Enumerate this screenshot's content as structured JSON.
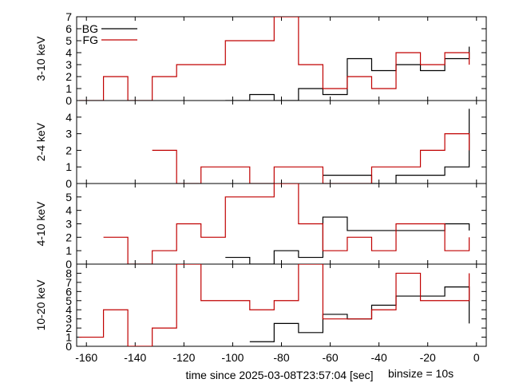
{
  "chart_data": {
    "type": "step",
    "xlabel": "time since 2025-03-08T23:57:04 [sec]",
    "annotation": "binsize = 10s",
    "xlim": [
      -164,
      4
    ],
    "xticks": [
      -160,
      -140,
      -120,
      -100,
      -80,
      -60,
      -40,
      -20,
      0
    ],
    "legend_placement": "top-left of first panel",
    "legend": [
      {
        "label": "BG",
        "color": "#000000"
      },
      {
        "label": "FG",
        "color": "#c00000"
      }
    ],
    "panels": [
      {
        "ylabel": "3-10 keV",
        "ylim": [
          0,
          7
        ],
        "yticks": [
          0,
          1,
          2,
          3,
          4,
          5,
          6,
          7
        ],
        "bg": {
          "x": [
            -103,
            -93,
            -83,
            -73,
            -63,
            -53,
            -43,
            -33,
            -23,
            -13,
            -3
          ],
          "y": [
            0,
            0.5,
            0,
            1,
            0.5,
            3.5,
            2.5,
            3,
            2.5,
            3.5,
            4.5
          ]
        },
        "fg": {
          "x": [
            -163,
            -153,
            -143,
            -133,
            -123,
            -113,
            -103,
            -93,
            -83,
            -73,
            -63,
            -53,
            -43,
            -33,
            -23,
            -13,
            -3
          ],
          "y": [
            0,
            2,
            0,
            2,
            3,
            3,
            5,
            5,
            7,
            3,
            1,
            2,
            1,
            4,
            3,
            4,
            3
          ]
        }
      },
      {
        "ylabel": "2-4 keV",
        "ylim": [
          0,
          5
        ],
        "yticks": [
          0,
          1,
          2,
          3,
          4
        ],
        "bg": {
          "x": [
            -63,
            -43,
            -33,
            -13,
            -3
          ],
          "y": [
            0.5,
            0,
            0.5,
            1,
            4.5
          ]
        },
        "fg": {
          "x": [
            -133,
            -123,
            -113,
            -93,
            -83,
            -63,
            -43,
            -23,
            -13,
            -3
          ],
          "y": [
            2,
            0,
            1,
            0,
            1,
            0,
            1,
            2,
            3,
            2
          ]
        }
      },
      {
        "ylabel": "4-10 keV",
        "ylim": [
          0,
          6
        ],
        "yticks": [
          0,
          1,
          2,
          3,
          4,
          5
        ],
        "bg": {
          "x": [
            -103,
            -93,
            -83,
            -73,
            -63,
            -53,
            -33,
            -13,
            -3
          ],
          "y": [
            0.5,
            0,
            1,
            0.5,
            3.5,
            2.5,
            2.5,
            3,
            2.5
          ]
        },
        "fg": {
          "x": [
            -153,
            -143,
            -133,
            -123,
            -113,
            -103,
            -83,
            -73,
            -63,
            -53,
            -43,
            -33,
            -13,
            -3
          ],
          "y": [
            2,
            0,
            1,
            3,
            2,
            5,
            6,
            3,
            1,
            2,
            1,
            3,
            1,
            2
          ]
        }
      },
      {
        "ylabel": "10-20 keV",
        "ylim": [
          0,
          9
        ],
        "yticks": [
          0,
          1,
          2,
          3,
          4,
          5,
          6,
          7,
          8
        ],
        "bg": {
          "x": [
            -93,
            -83,
            -73,
            -63,
            -53,
            -43,
            -33,
            -23,
            -13,
            -3
          ],
          "y": [
            0.5,
            2.5,
            1.5,
            3.5,
            3,
            4.5,
            5.5,
            5.5,
            6.5,
            2.5
          ]
        },
        "fg": {
          "x": [
            -163,
            -153,
            -143,
            -133,
            -123,
            -113,
            -93,
            -83,
            -73,
            -63,
            -53,
            -43,
            -33,
            -23,
            -13,
            -3
          ],
          "y": [
            1,
            4,
            0,
            2,
            9,
            5,
            4,
            5,
            9,
            3,
            3,
            4,
            8,
            5,
            5,
            8
          ]
        }
      }
    ]
  }
}
